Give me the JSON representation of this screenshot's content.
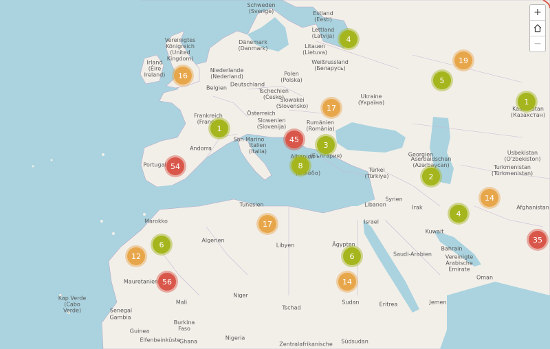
{
  "controls": {
    "zoom_in": "+",
    "zoom_out": "−",
    "home_icon": "home-icon"
  },
  "countries": [
    {
      "id": "schweden",
      "text": "Schweden\n(Sverige)"
    },
    {
      "id": "estland",
      "text": "Estland\n(Eesti)"
    },
    {
      "id": "lettland",
      "text": "Lettland\n(Latvija)"
    },
    {
      "id": "litauen",
      "text": "Litauen\n(Lietuva)"
    },
    {
      "id": "danemark",
      "text": "Dänemark\n(Danmark)"
    },
    {
      "id": "uk",
      "text": "Vereinigtes\nKönigreich\n(United\nKingdom)"
    },
    {
      "id": "irland",
      "text": "Irland\n(Éire\nIreland)"
    },
    {
      "id": "nl",
      "text": "Niederlande\n(Nederland)"
    },
    {
      "id": "belgien",
      "text": "Belgien"
    },
    {
      "id": "de",
      "text": "Deutschland"
    },
    {
      "id": "pl",
      "text": "Polen\n(Polska)"
    },
    {
      "id": "by",
      "text": "Weißrussland\n(Беларусь)"
    },
    {
      "id": "ua",
      "text": "Ukraine\n(Україна)"
    },
    {
      "id": "cz",
      "text": "Tschechien\n(Česko)"
    },
    {
      "id": "sk",
      "text": "Slowakei\n(Slovensko)"
    },
    {
      "id": "at",
      "text": "Österreich"
    },
    {
      "id": "fr",
      "text": "Frankreich\n(France)"
    },
    {
      "id": "ro",
      "text": "Rumänien\n(România)"
    },
    {
      "id": "si",
      "text": "Slowenien\n(Slovenija)"
    },
    {
      "id": "sm",
      "text": "San Marino"
    },
    {
      "id": "it",
      "text": "Italien\n(Italia)"
    },
    {
      "id": "andorra",
      "text": "Andorra"
    },
    {
      "id": "pt",
      "text": "Portugal"
    },
    {
      "id": "albanien",
      "text": "Albanien"
    },
    {
      "id": "gr",
      "text": "(Ελλάδα)"
    },
    {
      "id": "bg",
      "text": "(България)"
    },
    {
      "id": "kz",
      "text": "Kasachstan\n(Казахстан)"
    },
    {
      "id": "uz",
      "text": "Usbekistan\n(O'zbekiston)"
    },
    {
      "id": "tm",
      "text": "Turkmenistan\n(Türkmenistan)"
    },
    {
      "id": "georgien",
      "text": "Georgien"
    },
    {
      "id": "az",
      "text": "Aserbaidschan\n(Azərbaycan)"
    },
    {
      "id": "tr",
      "text": "Türkei\n(Türkiye)"
    },
    {
      "id": "sy",
      "text": "Syrien"
    },
    {
      "id": "lb",
      "text": "Libanon"
    },
    {
      "id": "il",
      "text": "Israel"
    },
    {
      "id": "iq",
      "text": "Irak"
    },
    {
      "id": "kw",
      "text": "Kuwait"
    },
    {
      "id": "af",
      "text": "Afghanistan"
    },
    {
      "id": "ma",
      "text": "Marokko"
    },
    {
      "id": "tn",
      "text": "Tunesien"
    },
    {
      "id": "dz",
      "text": "Algerien"
    },
    {
      "id": "ly",
      "text": "Libyen"
    },
    {
      "id": "eg",
      "text": "Ägypten"
    },
    {
      "id": "sa",
      "text": "Saudi-Arabien"
    },
    {
      "id": "bh",
      "text": "Bahrain"
    },
    {
      "id": "ae",
      "text": "Vereinigte\nArabische\nEmirate"
    },
    {
      "id": "om",
      "text": "Oman"
    },
    {
      "id": "mr",
      "text": "Mauretanien"
    },
    {
      "id": "ml",
      "text": "Mali"
    },
    {
      "id": "ne",
      "text": "Niger"
    },
    {
      "id": "td",
      "text": "Tschad"
    },
    {
      "id": "sd",
      "text": "Sudan"
    },
    {
      "id": "er",
      "text": "Eritrea"
    },
    {
      "id": "ye",
      "text": "Jemen"
    },
    {
      "id": "cv",
      "text": "Kap Verde\n(Cabo\nVerde)"
    },
    {
      "id": "sn",
      "text": "Senegal"
    },
    {
      "id": "gm",
      "text": "Gambia"
    },
    {
      "id": "gn",
      "text": "Guinea"
    },
    {
      "id": "bf",
      "text": "Burkina\nFaso"
    },
    {
      "id": "ng",
      "text": "Nigeria"
    },
    {
      "id": "ci",
      "text": "Elfenbeinküste"
    },
    {
      "id": "gh",
      "text": "Ghana"
    },
    {
      "id": "ss",
      "text": "Südsudan"
    },
    {
      "id": "caf",
      "text": "Zentralafrikanische"
    }
  ],
  "clusters": [
    {
      "id": "c1",
      "count": "4",
      "level": "green"
    },
    {
      "id": "c2",
      "count": "19",
      "level": "orange"
    },
    {
      "id": "c3",
      "count": "16",
      "level": "orange"
    },
    {
      "id": "c4",
      "count": "5",
      "level": "green"
    },
    {
      "id": "c5",
      "count": "1",
      "level": "green"
    },
    {
      "id": "c6",
      "count": "17",
      "level": "orange"
    },
    {
      "id": "c7",
      "count": "1",
      "level": "green"
    },
    {
      "id": "c8",
      "count": "45",
      "level": "red"
    },
    {
      "id": "c9",
      "count": "3",
      "level": "green"
    },
    {
      "id": "c10",
      "count": "54",
      "level": "red"
    },
    {
      "id": "c11",
      "count": "8",
      "level": "green"
    },
    {
      "id": "c12",
      "count": "2",
      "level": "green"
    },
    {
      "id": "c13",
      "count": "14",
      "level": "orange"
    },
    {
      "id": "c14",
      "count": "4",
      "level": "green"
    },
    {
      "id": "c15",
      "count": "17",
      "level": "orange"
    },
    {
      "id": "c16",
      "count": "35",
      "level": "red"
    },
    {
      "id": "c17",
      "count": "6",
      "level": "green"
    },
    {
      "id": "c18",
      "count": "12",
      "level": "orange"
    },
    {
      "id": "c19",
      "count": "6",
      "level": "green"
    },
    {
      "id": "c20",
      "count": "56",
      "level": "red"
    },
    {
      "id": "c21",
      "count": "14",
      "level": "orange"
    }
  ]
}
